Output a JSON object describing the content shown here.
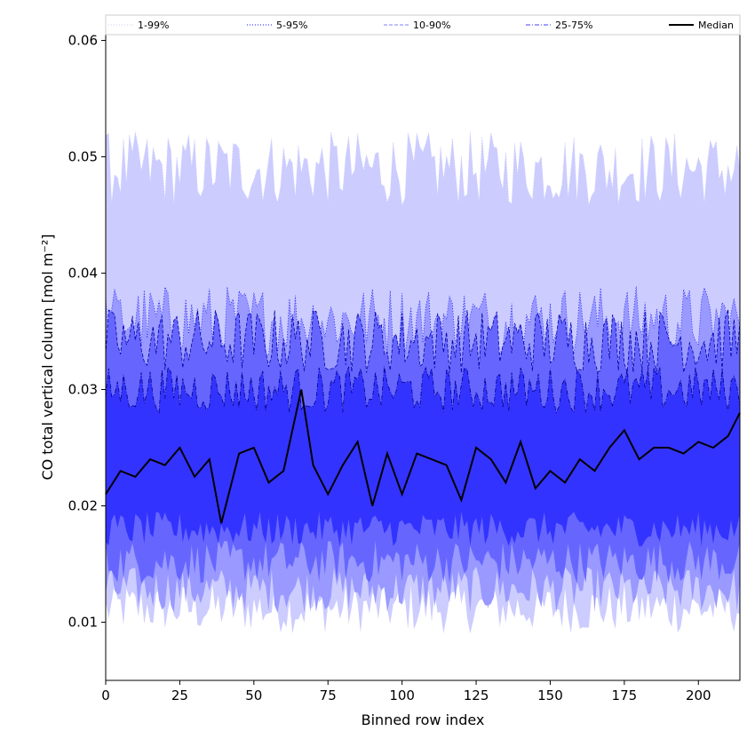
{
  "chart_data": {
    "type": "area",
    "xlabel": "Binned row index",
    "ylabel": "CO total vertical column [mol m⁻²]",
    "xlim": [
      0,
      214
    ],
    "ylim": [
      0.005,
      0.0605
    ],
    "x_ticks": [
      0,
      25,
      50,
      75,
      100,
      125,
      150,
      175,
      200
    ],
    "y_ticks": [
      0.01,
      0.02,
      0.03,
      0.04,
      0.05,
      0.06
    ],
    "x_tick_labels": [
      "0",
      "25",
      "50",
      "75",
      "100",
      "125",
      "150",
      "175",
      "200"
    ],
    "y_tick_labels": [
      "0.01",
      "0.02",
      "0.03",
      "0.04",
      "0.05",
      "0.06"
    ],
    "grid": false,
    "legend_position": "top",
    "legend": [
      {
        "name": "1-99%",
        "color": "#ccccff",
        "style": "dotted"
      },
      {
        "name": "5-95%",
        "color": "#1a1aff",
        "style": "dotted"
      },
      {
        "name": "10-90%",
        "color": "#8080ff",
        "style": "dashed"
      },
      {
        "name": "25-75%",
        "color": "#4040ff",
        "style": "dashdot"
      },
      {
        "name": "Median",
        "color": "#000000",
        "style": "solid"
      }
    ],
    "bands": [
      {
        "name": "1-99%",
        "fill": "#ccccff",
        "lower_mean": 0.0112,
        "upper_mean": 0.049,
        "lower_amp": 0.0022,
        "upper_amp": 0.0032
      },
      {
        "name": "5-95%",
        "fill": "#9999ff",
        "lower_mean": 0.0128,
        "upper_mean": 0.036,
        "lower_amp": 0.002,
        "upper_amp": 0.003
      },
      {
        "name": "10-90%",
        "fill": "#6666ff",
        "lower_mean": 0.0152,
        "upper_mean": 0.0342,
        "lower_amp": 0.0019,
        "upper_amp": 0.0028
      },
      {
        "name": "25-75%",
        "fill": "#3333ff",
        "lower_mean": 0.018,
        "upper_mean": 0.03,
        "lower_amp": 0.0015,
        "upper_amp": 0.002
      }
    ],
    "median": {
      "name": "Median",
      "x": [
        0,
        5,
        10,
        15,
        20,
        25,
        30,
        35,
        39,
        45,
        50,
        55,
        60,
        66,
        70,
        75,
        80,
        85,
        90,
        95,
        100,
        105,
        110,
        115,
        120,
        125,
        130,
        135,
        140,
        145,
        150,
        155,
        160,
        165,
        170,
        175,
        180,
        185,
        190,
        195,
        200,
        205,
        210,
        214
      ],
      "values": [
        0.021,
        0.023,
        0.0225,
        0.024,
        0.0235,
        0.025,
        0.0225,
        0.024,
        0.0185,
        0.0245,
        0.025,
        0.022,
        0.023,
        0.03,
        0.0235,
        0.021,
        0.0235,
        0.0255,
        0.02,
        0.0245,
        0.021,
        0.0245,
        0.024,
        0.0235,
        0.0205,
        0.025,
        0.024,
        0.022,
        0.0255,
        0.0215,
        0.023,
        0.022,
        0.024,
        0.023,
        0.025,
        0.0265,
        0.024,
        0.025,
        0.025,
        0.0245,
        0.0255,
        0.025,
        0.026,
        0.028
      ]
    }
  }
}
